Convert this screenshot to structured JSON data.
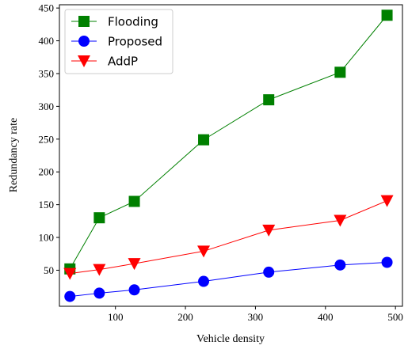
{
  "chart_data": {
    "type": "line",
    "xlabel": "Vehicle density",
    "ylabel": "Redundancy rate",
    "xlim": [
      20,
      510
    ],
    "ylim": [
      -5,
      455
    ],
    "xticks": [
      100,
      200,
      300,
      400,
      500
    ],
    "yticks": [
      50,
      100,
      150,
      200,
      250,
      300,
      350,
      400,
      450
    ],
    "legend_position": "top-left",
    "grid": false,
    "series": [
      {
        "name": "Flooding",
        "marker": "square",
        "color": "#008000",
        "x": [
          35,
          77,
          127,
          226,
          319,
          421,
          488
        ],
        "y": [
          52,
          130,
          155,
          249,
          310,
          352,
          439
        ]
      },
      {
        "name": "Proposed",
        "marker": "circle",
        "color": "#0000ff",
        "x": [
          35,
          77,
          127,
          226,
          319,
          421,
          488
        ],
        "y": [
          10,
          15,
          20,
          33,
          47,
          58,
          62
        ]
      },
      {
        "name": "AddP",
        "marker": "triangle-down",
        "color": "#ff0000",
        "x": [
          35,
          77,
          127,
          226,
          319,
          421,
          488
        ],
        "y": [
          45,
          51,
          60,
          79,
          111,
          126,
          156
        ]
      }
    ]
  }
}
